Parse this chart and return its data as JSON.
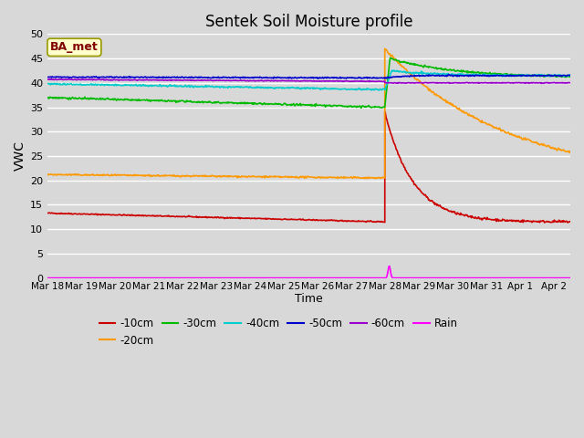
{
  "title": "Sentek Soil Moisture profile",
  "xlabel": "Time",
  "ylabel": "VWC",
  "annotation": "BA_met",
  "ylim": [
    0,
    50
  ],
  "xlim_days": [
    0,
    15.5
  ],
  "x_tick_labels": [
    "Mar 18",
    "Mar 19",
    "Mar 20",
    "Mar 21",
    "Mar 22",
    "Mar 23",
    "Mar 24",
    "Mar 25",
    "Mar 26",
    "Mar 27",
    "Mar 28",
    "Mar 29",
    "Mar 30",
    "Mar 31",
    "Apr 1",
    "Apr 2"
  ],
  "x_tick_positions": [
    0,
    1,
    2,
    3,
    4,
    5,
    6,
    7,
    8,
    9,
    10,
    11,
    12,
    13,
    14,
    15
  ],
  "yticks": [
    0,
    5,
    10,
    15,
    20,
    25,
    30,
    35,
    40,
    45,
    50
  ],
  "background_color": "#d8d8d8",
  "plot_bg_color": "#d8d8d8",
  "grid_color": "#ffffff",
  "series": {
    "d10": {
      "color": "#cc0000",
      "label": "-10cm"
    },
    "d20": {
      "color": "#ff9900",
      "label": "-20cm"
    },
    "d30": {
      "color": "#00bb00",
      "label": "-30cm"
    },
    "d40": {
      "color": "#00cccc",
      "label": "-40cm"
    },
    "d50": {
      "color": "#0000cc",
      "label": "-50cm"
    },
    "d60": {
      "color": "#9900cc",
      "label": "-60cm"
    },
    "rain": {
      "color": "#ff00ff",
      "label": "Rain"
    }
  }
}
